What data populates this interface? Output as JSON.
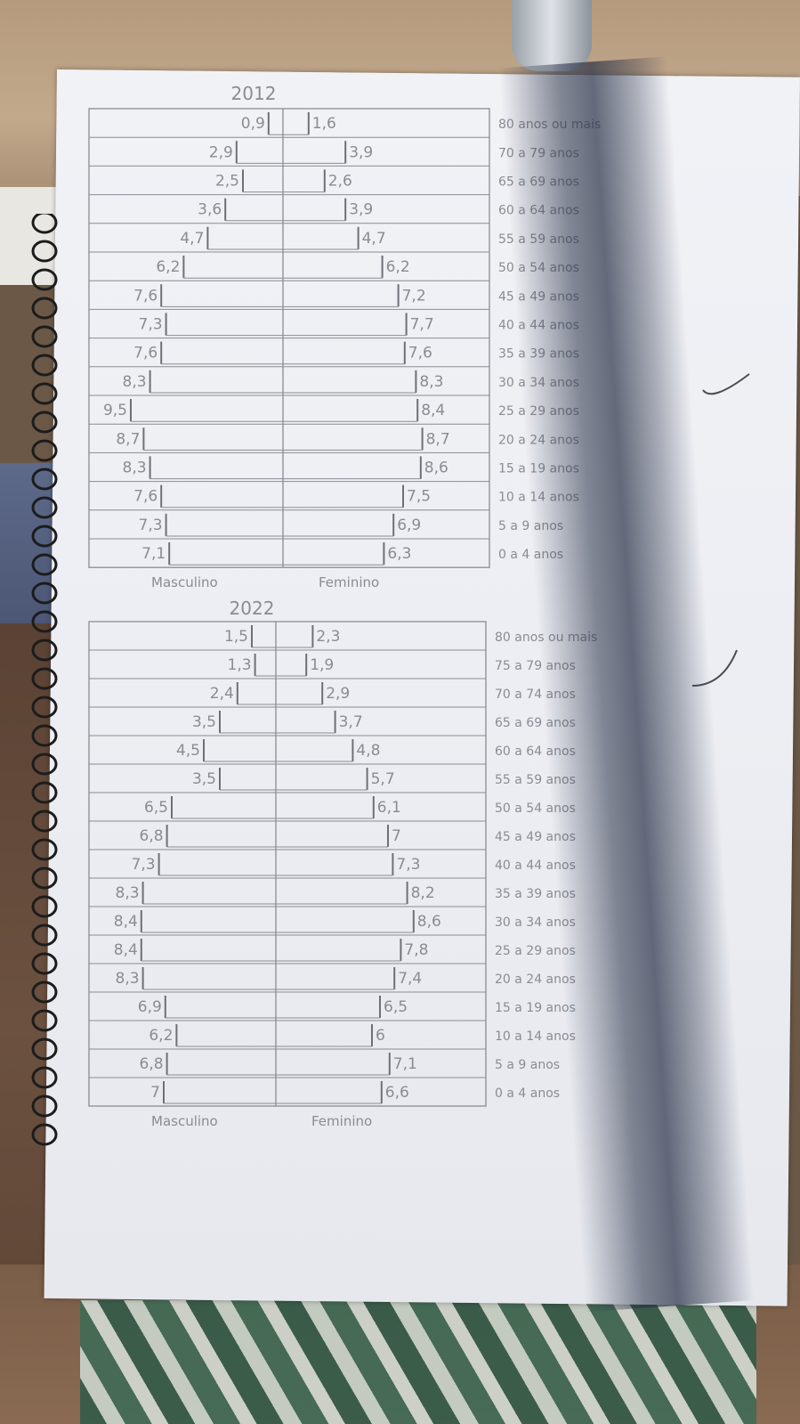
{
  "chart_data": [
    {
      "type": "bar",
      "title": "2012",
      "categories": [
        "80 anos ou mais",
        "70 a 79 anos",
        "65 a 69 anos",
        "60 a 64 anos",
        "55 a 59 anos",
        "50 a 54 anos",
        "45 a 49 anos",
        "40 a 44 anos",
        "35 a 39 anos",
        "30 a 34 anos",
        "25 a 29 anos",
        "20 a 24 anos",
        "15 a 19 anos",
        "10 a 14 anos",
        "5 a 9 anos",
        "0 a 4 anos"
      ],
      "series": [
        {
          "name": "Masculino",
          "labels": [
            "0,9",
            "2,9",
            "2,5",
            "3,6",
            "4,7",
            "6,2",
            "7,6",
            "7,3",
            "7,6",
            "8,3",
            "9,5",
            "8,7",
            "8,3",
            "7,6",
            "7,3",
            "7,1"
          ],
          "values": [
            0.9,
            2.9,
            2.5,
            3.6,
            4.7,
            6.2,
            7.6,
            7.3,
            7.6,
            8.3,
            9.5,
            8.7,
            8.3,
            7.6,
            7.3,
            7.1
          ]
        },
        {
          "name": "Feminino",
          "labels": [
            "1,6",
            "3,9",
            "2,6",
            "3,9",
            "4,7",
            "6,2",
            "7,2",
            "7,7",
            "7,6",
            "8,3",
            "8,4",
            "8,7",
            "8,6",
            "7,5",
            "6,9",
            "6,3"
          ],
          "values": [
            1.6,
            3.9,
            2.6,
            3.9,
            4.7,
            6.2,
            7.2,
            7.7,
            7.6,
            8.3,
            8.4,
            8.7,
            8.6,
            7.5,
            6.9,
            6.3
          ]
        }
      ]
    },
    {
      "type": "bar",
      "title": "2022",
      "categories": [
        "80 anos ou mais",
        "75 a 79 anos",
        "70 a 74 anos",
        "65 a 69 anos",
        "60 a 64 anos",
        "55 a 59 anos",
        "50 a 54 anos",
        "45 a 49 anos",
        "40 a 44 anos",
        "35 a 39 anos",
        "30 a 34 anos",
        "25 a 29 anos",
        "20 a 24 anos",
        "15 a 19 anos",
        "10 a 14 anos",
        "5 a 9 anos",
        "0 a 4 anos"
      ],
      "series": [
        {
          "name": "Masculino",
          "labels": [
            "1,5",
            "1,3",
            "2,4",
            "3,5",
            "4,5",
            "3,5",
            "6,5",
            "6,8",
            "7,3",
            "8,3",
            "8,4",
            "8,4",
            "8,3",
            "6,9",
            "6,2",
            "6,8",
            "7"
          ],
          "values": [
            1.5,
            1.3,
            2.4,
            3.5,
            4.5,
            3.5,
            6.5,
            6.8,
            7.3,
            8.3,
            8.4,
            8.4,
            8.3,
            6.9,
            6.2,
            6.8,
            7
          ]
        },
        {
          "name": "Feminino",
          "labels": [
            "2,3",
            "1,9",
            "2,9",
            "3,7",
            "4,8",
            "5,7",
            "6,1",
            "7",
            "7,3",
            "8,2",
            "8,6",
            "7,8",
            "7,4",
            "6,5",
            "6",
            "7,1",
            "6,6"
          ],
          "values": [
            2.3,
            1.9,
            2.9,
            3.7,
            4.8,
            5.7,
            6.1,
            7,
            7.3,
            8.2,
            8.6,
            7.8,
            7.4,
            6.5,
            6,
            7.1,
            6.6
          ]
        }
      ]
    }
  ],
  "colors": {
    "pencil": "#8a8c93",
    "paper": "#eceef3"
  }
}
